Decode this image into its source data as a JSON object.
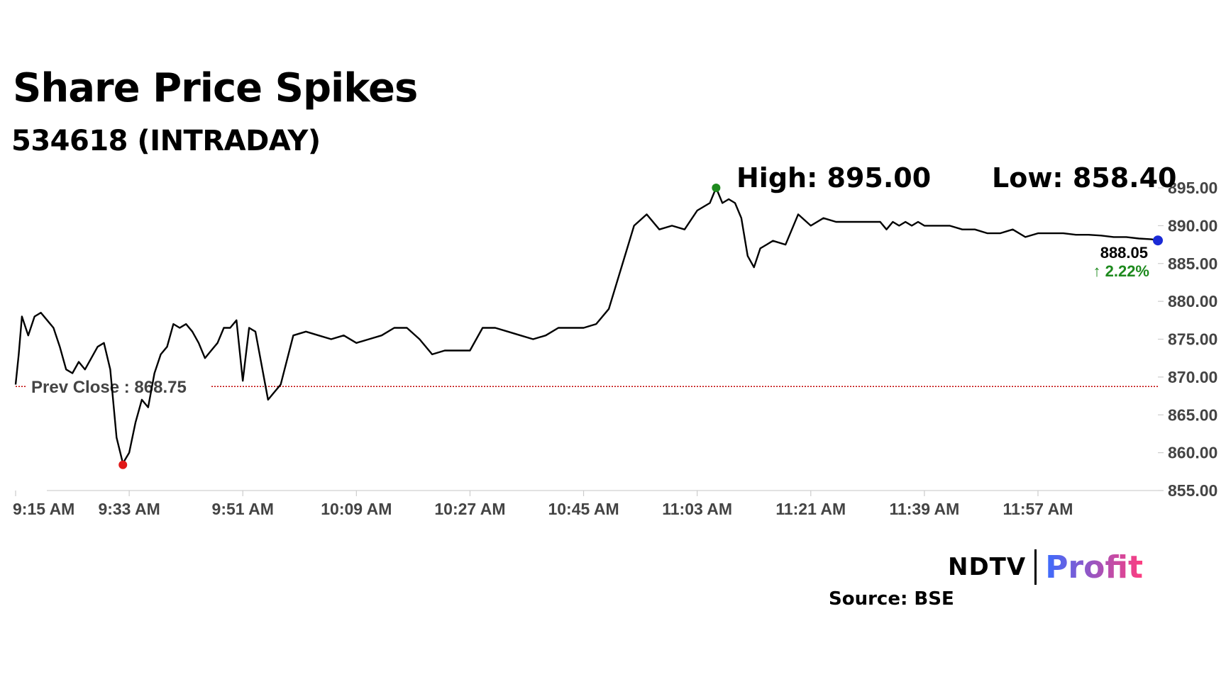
{
  "header": {
    "title": "Share Price Spikes",
    "subtitle": "534618 (INTRADAY)"
  },
  "stats": {
    "high_label": "High: 895.00",
    "low_label": "Low: 858.40",
    "last_price": "888.05",
    "change": "↑ 2.22%",
    "prev_close_label": "Prev Close : 868.75"
  },
  "branding": {
    "logo_left": "NDTV",
    "logo_right": "Profit",
    "source": "Source: BSE"
  },
  "colors": {
    "line": "#000000",
    "high_marker": "#1e8a1e",
    "low_marker": "#e01818",
    "last_marker": "#1a2ad6",
    "change_up": "#1e8a1e",
    "prev_close_line": "#c00000",
    "axis_text": "#444444",
    "profit_start": "#3a6cff",
    "profit_end": "#ff3d7f"
  },
  "chart_data": {
    "type": "line",
    "title": "Share Price Spikes",
    "subtitle": "534618 (INTRADAY)",
    "xlabel": "",
    "ylabel": "",
    "x_ticks": [
      "9:15 AM",
      "9:33 AM",
      "9:51 AM",
      "10:09 AM",
      "10:27 AM",
      "10:45 AM",
      "11:03 AM",
      "11:21 AM",
      "11:39 AM",
      "11:57 AM"
    ],
    "x_range_minutes": [
      0,
      181
    ],
    "y_ticks": [
      "855.00",
      "860.00",
      "865.00",
      "870.00",
      "875.00",
      "880.00",
      "885.00",
      "890.00",
      "895.00"
    ],
    "ylim": [
      855,
      895
    ],
    "prev_close": 868.75,
    "high": 895.0,
    "low": 858.4,
    "last": 888.05,
    "change_pct": 2.22,
    "series": [
      {
        "x": [
          0,
          0.5,
          1,
          2,
          3,
          4,
          5,
          6,
          7,
          8,
          9,
          10,
          11,
          12,
          13,
          14,
          15,
          16,
          17,
          18,
          19,
          20,
          21,
          22,
          23,
          24,
          25,
          26,
          27,
          28,
          29,
          30,
          31,
          32,
          33,
          34,
          35,
          36,
          37,
          38,
          40,
          42,
          44,
          46,
          48,
          50,
          52,
          54,
          56,
          58,
          60,
          62,
          64,
          66,
          68,
          70,
          72,
          74,
          76,
          78,
          80,
          82,
          84,
          86,
          88,
          90,
          92,
          94,
          96,
          98,
          100,
          102,
          104,
          106,
          108,
          110,
          111,
          112,
          113,
          114,
          115,
          116,
          117,
          118,
          119,
          120,
          122,
          124,
          126,
          128,
          130,
          132,
          134,
          136,
          137,
          138,
          139,
          140,
          141,
          142,
          143,
          144,
          146,
          148,
          150,
          152,
          154,
          156,
          158,
          160,
          162,
          164,
          166,
          168,
          170,
          172,
          174,
          176,
          178,
          180,
          181
        ],
        "values": [
          869.0,
          873.0,
          878.0,
          875.5,
          878.0,
          878.5,
          877.5,
          876.5,
          874.0,
          871.0,
          870.5,
          872.0,
          871.0,
          872.5,
          874.0,
          874.5,
          871.0,
          862.0,
          858.6,
          860.0,
          864.0,
          867.0,
          866.0,
          870.5,
          873.0,
          874.0,
          877.0,
          876.5,
          877.0,
          876.0,
          874.5,
          872.5,
          873.5,
          874.5,
          876.5,
          876.5,
          877.5,
          869.5,
          876.5,
          876.0,
          867.0,
          869.0,
          875.5,
          876.0,
          875.5,
          875.0,
          875.5,
          874.5,
          875.0,
          875.5,
          876.5,
          876.5,
          875.0,
          873.0,
          873.5,
          873.5,
          873.5,
          876.5,
          876.5,
          876.0,
          875.5,
          875.0,
          875.5,
          876.5,
          876.5,
          876.5,
          877.0,
          879.0,
          884.5,
          890.0,
          891.5,
          889.5,
          890.0,
          889.5,
          892.0,
          893.0,
          895.0,
          893.0,
          893.5,
          893.0,
          891.0,
          886.0,
          884.5,
          887.0,
          887.5,
          888.0,
          887.5,
          891.5,
          890.0,
          891.0,
          890.5,
          890.5,
          890.5,
          890.5,
          890.5,
          889.5,
          890.5,
          890.0,
          890.5,
          890.0,
          890.5,
          890.0,
          890.0,
          890.0,
          889.5,
          889.5,
          889.0,
          889.0,
          889.5,
          888.5,
          889.0,
          889.0,
          889.0,
          888.8,
          888.8,
          888.7,
          888.5,
          888.5,
          888.3,
          888.2,
          888.05
        ]
      }
    ]
  }
}
